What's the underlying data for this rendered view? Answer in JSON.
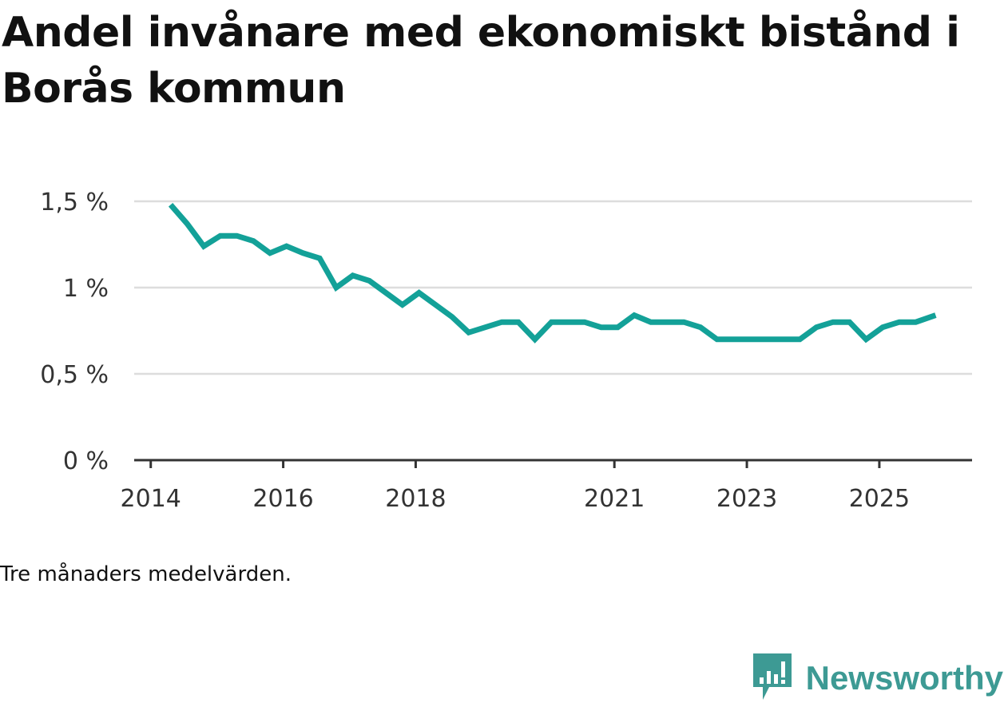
{
  "header": {
    "title": "Andel invånare med ekonomiskt bistånd i Borås kommun"
  },
  "footer": {
    "note": "Tre månaders medelvärden.",
    "brand": "Newsworthy"
  },
  "colors": {
    "line": "#13a198",
    "grid": "#dddddd",
    "axis": "#333333",
    "brand": "#3d9a94"
  },
  "chart_data": {
    "type": "line",
    "title": "Andel invånare med ekonomiskt bistånd i Borås kommun",
    "xlabel": "",
    "ylabel": "",
    "ylim": [
      0,
      1.5
    ],
    "xlim": [
      2013.75,
      2026.4
    ],
    "yticks": [
      {
        "value": 0,
        "label": "0 %"
      },
      {
        "value": 0.5,
        "label": "0,5 %"
      },
      {
        "value": 1.0,
        "label": "1 %"
      },
      {
        "value": 1.5,
        "label": "1,5 %"
      }
    ],
    "xticks": [
      {
        "value": 2014,
        "label": "2014"
      },
      {
        "value": 2016,
        "label": "2016"
      },
      {
        "value": 2018,
        "label": "2018"
      },
      {
        "value": 2021,
        "label": "2021"
      },
      {
        "value": 2023,
        "label": "2023"
      },
      {
        "value": 2025,
        "label": "2025"
      }
    ],
    "grid": true,
    "series": [
      {
        "name": "Andel invånare med ekonomiskt bistånd",
        "x": [
          2014.3,
          2014.55,
          2014.8,
          2015.05,
          2015.3,
          2015.55,
          2015.8,
          2016.05,
          2016.3,
          2016.55,
          2016.8,
          2017.05,
          2017.3,
          2017.55,
          2017.8,
          2018.05,
          2018.3,
          2018.55,
          2018.8,
          2019.05,
          2019.3,
          2019.55,
          2019.8,
          2020.05,
          2020.3,
          2020.55,
          2020.8,
          2021.05,
          2021.3,
          2021.55,
          2021.8,
          2022.05,
          2022.3,
          2022.55,
          2022.8,
          2023.05,
          2023.3,
          2023.55,
          2023.8,
          2024.05,
          2024.3,
          2024.55,
          2024.8,
          2025.05,
          2025.3,
          2025.55,
          2025.85
        ],
        "values": [
          1.48,
          1.37,
          1.24,
          1.3,
          1.3,
          1.27,
          1.2,
          1.24,
          1.2,
          1.17,
          1.0,
          1.07,
          1.04,
          0.97,
          0.9,
          0.97,
          0.9,
          0.83,
          0.74,
          0.77,
          0.8,
          0.8,
          0.7,
          0.8,
          0.8,
          0.8,
          0.77,
          0.77,
          0.84,
          0.8,
          0.8,
          0.8,
          0.77,
          0.7,
          0.7,
          0.7,
          0.7,
          0.7,
          0.7,
          0.77,
          0.8,
          0.8,
          0.7,
          0.77,
          0.8,
          0.8,
          0.84
        ]
      }
    ]
  }
}
